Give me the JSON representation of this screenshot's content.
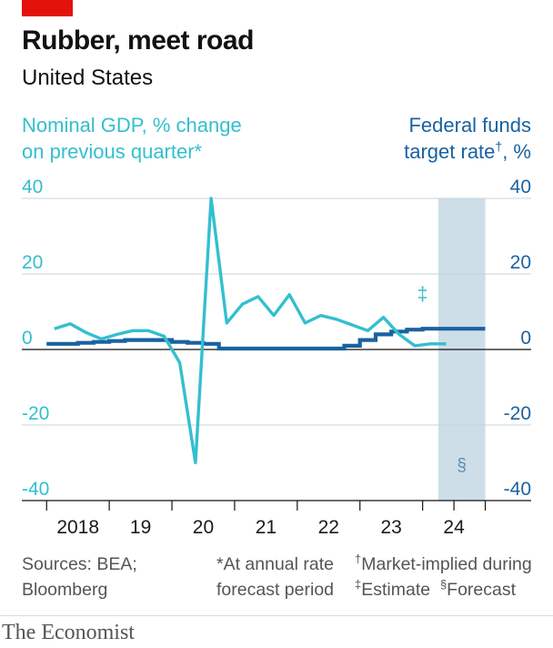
{
  "title": "Rubber, meet road",
  "subtitle": "United States",
  "left_axis_title": [
    "Nominal GDP, % change",
    "on previous quarter*"
  ],
  "right_axis_title": [
    "Federal funds",
    "target rate",
    "†",
    ", %"
  ],
  "footnotes": {
    "sources": [
      "Sources: BEA;",
      "Bloomberg"
    ],
    "star": [
      "*At annual rate",
      "forecast period"
    ],
    "dagger": [
      "†",
      "Market-implied during"
    ],
    "ddagger": [
      "‡",
      "Estimate"
    ],
    "section": [
      "§",
      "Forecast"
    ]
  },
  "brand": "The Economist",
  "colors": {
    "gdp": "#33bfcf",
    "fed": "#1a62a0",
    "forecast_band": "#c5d8e4",
    "grid": "#c9d3d8",
    "axis": "#121212",
    "left_ticks": "#33bfcf",
    "right_ticks": "#1a62a0",
    "red_tag": "#e3120b"
  },
  "chart_data": {
    "type": "line",
    "x_unit": "year (decimal)",
    "xlim": [
      2017.25,
      2025.0
    ],
    "x_tick_labels": [
      {
        "x": 2018.0,
        "label": "2018"
      },
      {
        "x": 2019.0,
        "label": "19"
      },
      {
        "x": 2020.0,
        "label": "20"
      },
      {
        "x": 2021.0,
        "label": "21"
      },
      {
        "x": 2022.0,
        "label": "22"
      },
      {
        "x": 2023.0,
        "label": "23"
      },
      {
        "x": 2024.0,
        "label": "24"
      }
    ],
    "x_tick_marks": [
      2017.5,
      2018.5,
      2019.5,
      2020.5,
      2021.5,
      2022.5,
      2023.5,
      2024.0,
      2024.5
    ],
    "ylim_left": [
      -40,
      40
    ],
    "ylim_right": [
      -40,
      40
    ],
    "y_ticks_left": [
      40,
      20,
      0,
      -20,
      -40
    ],
    "y_ticks_right": [
      40,
      20,
      0,
      -20,
      -40
    ],
    "forecast_band": {
      "x_start": 2023.75,
      "x_end": 2024.5,
      "label": "§"
    },
    "estimate_marker": {
      "x": 2023.5,
      "y": 13,
      "label": "‡"
    },
    "grid": true,
    "series": [
      {
        "name": "Nominal GDP, % change on previous quarter*",
        "axis": "left",
        "style": "line",
        "x": [
          2017.625,
          2017.875,
          2018.125,
          2018.375,
          2018.625,
          2018.875,
          2019.125,
          2019.375,
          2019.625,
          2019.875,
          2020.125,
          2020.375,
          2020.625,
          2020.875,
          2021.125,
          2021.375,
          2021.625,
          2021.875,
          2022.125,
          2022.375,
          2022.625,
          2022.875,
          2023.125,
          2023.375,
          2023.625,
          2023.875,
          2024.125,
          2024.375
        ],
        "y": [
          5.5,
          6.8,
          4.5,
          2.8,
          4.0,
          5.0,
          5.0,
          3.5,
          -3.5,
          -30.0,
          40.0,
          7.0,
          12.0,
          14.0,
          9.0,
          14.5,
          7.0,
          9.0,
          8.0,
          6.5,
          5.0,
          8.5,
          4.0,
          1.0,
          1.5,
          1.5,
          null,
          null
        ]
      },
      {
        "name": "Federal funds target rate†, %",
        "axis": "right",
        "style": "step",
        "x": [
          2017.625,
          2017.875,
          2018.125,
          2018.375,
          2018.625,
          2018.875,
          2019.125,
          2019.375,
          2019.625,
          2019.875,
          2020.125,
          2020.375,
          2020.625,
          2020.875,
          2021.125,
          2021.375,
          2021.625,
          2021.875,
          2022.125,
          2022.375,
          2022.625,
          2022.875,
          2023.125,
          2023.375,
          2023.625,
          2023.875,
          2024.125,
          2024.375
        ],
        "y": [
          1.5,
          1.5,
          1.75,
          2.0,
          2.25,
          2.5,
          2.5,
          2.5,
          2.0,
          1.75,
          1.5,
          0.25,
          0.25,
          0.25,
          0.25,
          0.25,
          0.25,
          0.25,
          0.25,
          1.0,
          2.5,
          4.0,
          4.75,
          5.25,
          5.5,
          5.5,
          5.5,
          5.5
        ]
      }
    ]
  }
}
